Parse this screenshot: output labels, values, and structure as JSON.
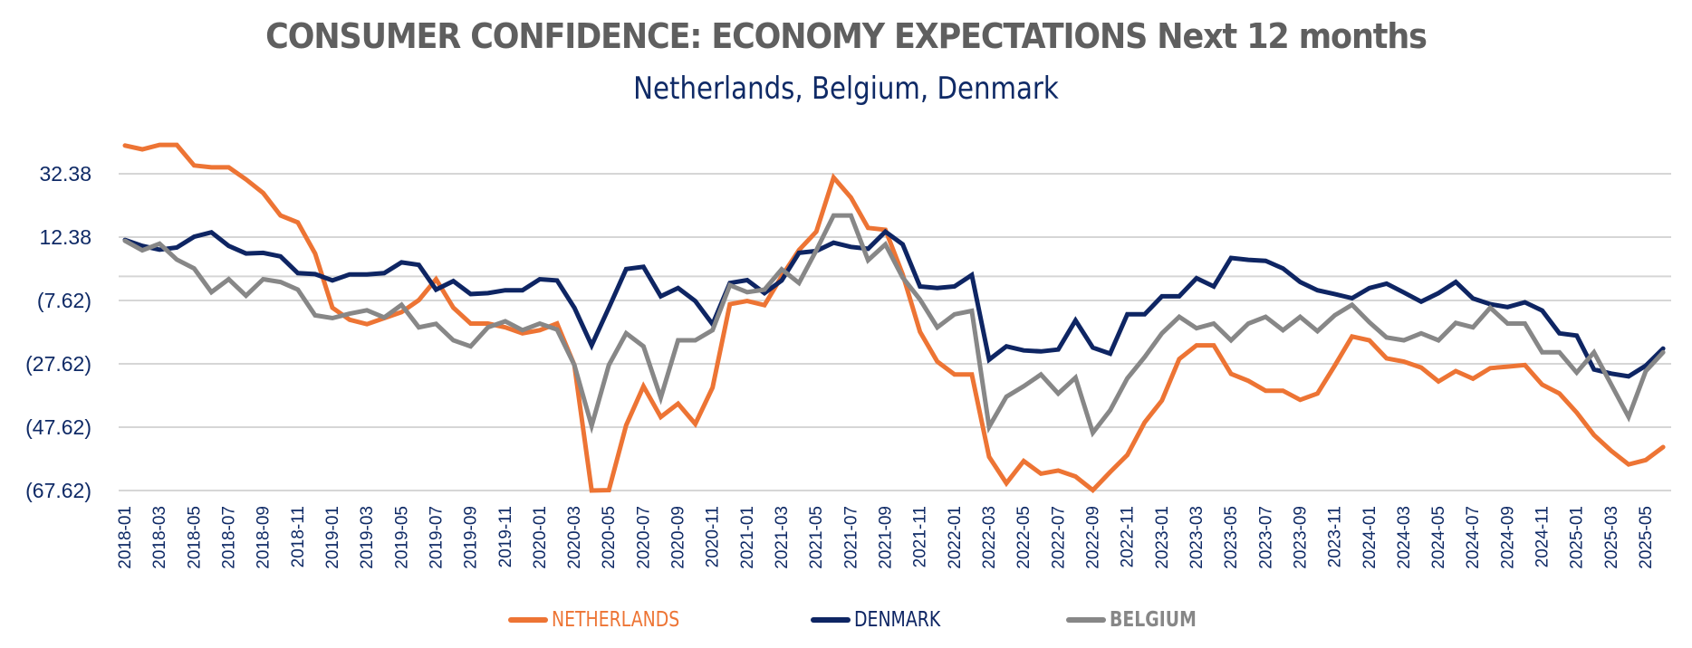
{
  "chart_data": {
    "type": "line",
    "title": "CONSUMER CONFIDENCE: ECONOMY EXPECTATIONS Next 12 months",
    "subtitle": "Netherlands, Belgium, Denmark",
    "xlabel": "",
    "ylabel": "",
    "ylim": [
      -67.62,
      42
    ],
    "grid": true,
    "legend_position": "bottom",
    "y_ticks": [
      {
        "value": 32.38,
        "label": "32.38"
      },
      {
        "value": 12.38,
        "label": "12.38"
      },
      {
        "value": -7.62,
        "label": "(7.62)"
      },
      {
        "value": -27.62,
        "label": "(27.62)"
      },
      {
        "value": -47.62,
        "label": "(47.62)"
      },
      {
        "value": -67.62,
        "label": "(67.62)"
      }
    ],
    "x_tick_labels": [
      "2018-01",
      "2018-03",
      "2018-05",
      "2018-07",
      "2018-09",
      "2018-11",
      "2019-01",
      "2019-03",
      "2019-05",
      "2019-07",
      "2019-09",
      "2019-11",
      "2020-01",
      "2020-03",
      "2020-05",
      "2020-07",
      "2020-09",
      "2020-11",
      "2021-01",
      "2021-03",
      "2021-05",
      "2021-07",
      "2021-09",
      "2021-11",
      "2022-01",
      "2022-03",
      "2022-05",
      "2022-07",
      "2022-09",
      "2022-11",
      "2023-01",
      "2023-03",
      "2023-05",
      "2023-07",
      "2023-09",
      "2023-11",
      "2024-01",
      "2024-03",
      "2024-05",
      "2024-07",
      "2024-09",
      "2024-11",
      "2025-01",
      "2025-03",
      "2025-05"
    ],
    "x_start": "2018-01",
    "x_end": "2025-06",
    "x_frequency": "monthly",
    "series": [
      {
        "name": "NETHERLANDS",
        "color": "#ed7434",
        "values": [
          41.3,
          40.1,
          41.5,
          41.5,
          35.0,
          34.4,
          34.4,
          30.6,
          26.3,
          19.2,
          17.0,
          7.2,
          -9.9,
          -13.7,
          -15.1,
          -13.2,
          -11.3,
          -7.5,
          -0.9,
          -9.9,
          -14.9,
          -14.9,
          -16.1,
          -18.0,
          -17.0,
          -14.9,
          -28.0,
          -68.0,
          -67.5,
          -47.0,
          -34.7,
          -44.4,
          -40.2,
          -46.6,
          -35.1,
          -8.8,
          -7.8,
          -9.1,
          0.0,
          8.3,
          14.1,
          31.2,
          24.9,
          15.3,
          14.7,
          0.6,
          -17.5,
          -26.9,
          -31.0,
          -31.0,
          -57.0,
          -65.3,
          -58.3,
          -62.3,
          -61.3,
          -63.2,
          -67.5,
          -61.8,
          -56.4,
          -46.1,
          -39.2,
          -26.1,
          -21.8,
          -21.8,
          -30.8,
          -33.0,
          -36.1,
          -36.1,
          -39.0,
          -37.0,
          -28.2,
          -19.0,
          -20.2,
          -25.9,
          -26.9,
          -28.8,
          -33.2,
          -29.9,
          -32.3,
          -29.0,
          -28.5,
          -28.0,
          -34.2,
          -37.0,
          -43.0,
          -50.1,
          -55.1,
          -59.4,
          -58.0,
          -53.9
        ]
      },
      {
        "name": "DENMARK",
        "color": "#0e2563",
        "values": [
          11.5,
          9.6,
          8.4,
          9.1,
          12.5,
          13.9,
          9.6,
          7.2,
          7.4,
          6.3,
          1.0,
          0.7,
          -1.3,
          0.6,
          0.6,
          1.0,
          4.4,
          3.6,
          -4.2,
          -1.5,
          -5.6,
          -5.3,
          -4.4,
          -4.4,
          -0.9,
          -1.3,
          -9.9,
          -21.8,
          -9.9,
          2.3,
          3.0,
          -6.3,
          -3.7,
          -7.8,
          -15.1,
          -2.1,
          -1.2,
          -5.3,
          -1.3,
          7.4,
          8.0,
          10.6,
          9.3,
          8.7,
          14.1,
          10.1,
          -3.2,
          -3.7,
          -3.2,
          0.4,
          -26.3,
          -22.1,
          -23.4,
          -23.7,
          -23.1,
          -13.9,
          -22.5,
          -24.4,
          -12.0,
          -12.0,
          -6.3,
          -6.3,
          -0.6,
          -3.2,
          5.8,
          5.2,
          4.9,
          2.5,
          -1.8,
          -4.4,
          -5.6,
          -6.9,
          -3.7,
          -2.3,
          -5.1,
          -8.0,
          -5.3,
          -1.8,
          -7.0,
          -8.8,
          -9.7,
          -8.2,
          -10.8,
          -18.0,
          -18.7,
          -29.4,
          -30.7,
          -31.6,
          -28.2,
          -22.8
        ]
      },
      {
        "name": "BELGIUM",
        "color": "#878787",
        "values": [
          11.2,
          8.2,
          10.3,
          5.3,
          2.5,
          -5.0,
          -0.9,
          -6.1,
          -0.9,
          -1.8,
          -4.2,
          -12.3,
          -13.2,
          -11.8,
          -10.7,
          -13.0,
          -9.0,
          -16.1,
          -15.0,
          -20.2,
          -22.1,
          -16.1,
          -14.2,
          -17.0,
          -14.9,
          -16.8,
          -28.0,
          -47.2,
          -28.0,
          -18.0,
          -22.1,
          -38.3,
          -20.2,
          -20.2,
          -17.0,
          -2.8,
          -5.0,
          -4.2,
          2.2,
          -2.1,
          8.2,
          19.2,
          19.2,
          5.1,
          10.1,
          -0.4,
          -7.3,
          -16.1,
          -12.0,
          -10.9,
          -47.5,
          -38.0,
          -34.7,
          -31.0,
          -37.0,
          -32.0,
          -49.4,
          -42.3,
          -32.2,
          -25.5,
          -18.0,
          -12.8,
          -16.4,
          -14.9,
          -20.2,
          -14.9,
          -12.8,
          -17.0,
          -12.8,
          -17.3,
          -12.3,
          -9.0,
          -14.5,
          -19.3,
          -20.2,
          -18.0,
          -20.2,
          -14.7,
          -16.1,
          -9.9,
          -14.9,
          -14.9,
          -24.0,
          -24.0,
          -30.4,
          -24.0,
          -34.2,
          -44.4,
          -29.9,
          -24.0
        ]
      }
    ]
  },
  "colors": {
    "title": "#5f5f5f",
    "subtitle": "#0f2a66",
    "axis_text": "#0f2a66",
    "gridline": "#d6d6d6"
  }
}
